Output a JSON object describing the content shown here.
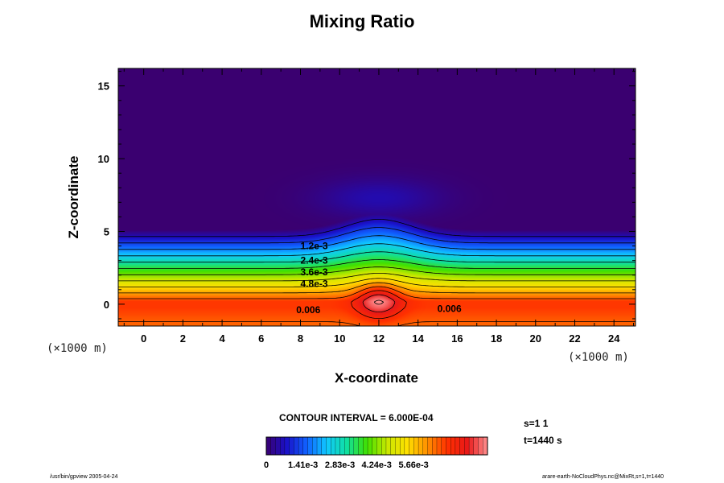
{
  "chart_data": {
    "type": "heatmap",
    "title": "Mixing Ratio",
    "xlabel": "X-coordinate",
    "ylabel": "Z-coordinate",
    "x_unit": "(×1000 m)",
    "xlim": [
      -1.3,
      25.1
    ],
    "ylim": [
      -1.5,
      16.2
    ],
    "x_ticks": [
      0,
      2,
      4,
      6,
      8,
      10,
      12,
      14,
      16,
      18,
      20,
      22,
      24
    ],
    "y_ticks": [
      0,
      5,
      10,
      15
    ],
    "contour_labels": [
      {
        "text": "1.2e-3",
        "x": 8.7,
        "z": 4.0
      },
      {
        "text": "2.4e-3",
        "x": 8.7,
        "z": 3.0
      },
      {
        "text": "3.6e-3",
        "x": 8.7,
        "z": 2.2
      },
      {
        "text": "4.8e-3",
        "x": 8.7,
        "z": 1.4
      },
      {
        "text": "0.006",
        "x": 8.4,
        "z": -0.4
      },
      {
        "text": "0.006",
        "x": 15.6,
        "z": -0.3
      }
    ],
    "contour_interval_text": "CONTOUR INTERVAL = 6.000E-04",
    "contour_interval": 0.0006,
    "colorbar": {
      "min": 0,
      "max": 0.0085,
      "tick_labels": [
        "0",
        "1.41e-3",
        "2.83e-3",
        "4.24e-3",
        "5.66e-3"
      ],
      "tick_values": [
        0,
        0.00141,
        0.00283,
        0.00424,
        0.00566
      ]
    },
    "colors": [
      "#3a0070",
      "#1a10c8",
      "#1060ff",
      "#10c8ff",
      "#10e0a0",
      "#40e000",
      "#c8e800",
      "#ffe000",
      "#ff9000",
      "#ff3000",
      "#e81818",
      "#ff9090"
    ]
  },
  "info": {
    "s": "s=1 1",
    "t": "t=1440 s"
  },
  "footer": {
    "left": "/usr/bin/gpview 2005-04-24",
    "right": "arare-earth-NoCloudPhys.nc@MixRt,s=1,t=1440"
  }
}
